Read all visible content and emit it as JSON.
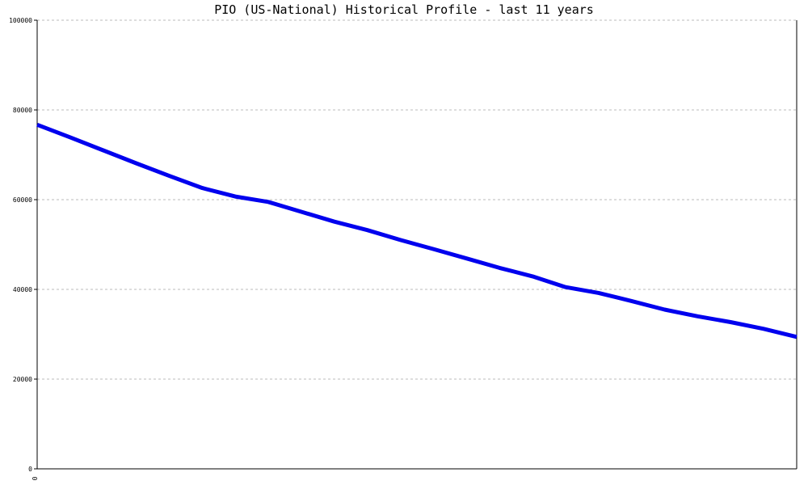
{
  "chart_data": {
    "type": "line",
    "title": "PIO (US-National) Historical Profile - last 11 years",
    "xlabel": "",
    "ylabel": "",
    "ylim": [
      0,
      100000
    ],
    "y_ticks": [
      "0",
      "20000",
      "40000",
      "60000",
      "80000",
      "100000"
    ],
    "x_tick_labels": [
      "0"
    ],
    "grid": true,
    "series": [
      {
        "color": "#0000ee",
        "x": [
          0,
          0.0435,
          0.087,
          0.1304,
          0.1739,
          0.2174,
          0.2609,
          0.3043,
          0.3478,
          0.3913,
          0.4348,
          0.4783,
          0.5217,
          0.5652,
          0.6087,
          0.6522,
          0.6957,
          0.7391,
          0.7826,
          0.8261,
          0.8696,
          0.913,
          0.9565,
          1.0
        ],
        "values": [
          76700,
          73900,
          71000,
          68100,
          65300,
          62600,
          60700,
          59500,
          57300,
          55100,
          53200,
          51000,
          49000,
          46900,
          44800,
          42900,
          40500,
          39200,
          37400,
          35500,
          34000,
          32700,
          31200,
          29400
        ]
      }
    ]
  }
}
